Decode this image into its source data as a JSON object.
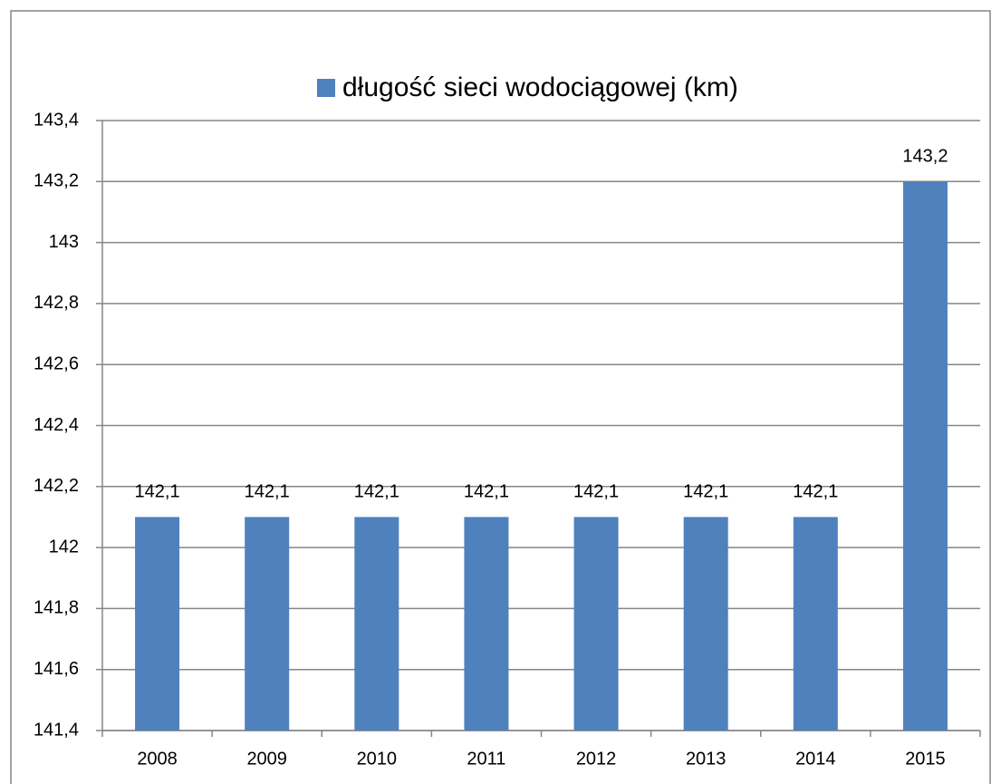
{
  "chart_data": {
    "type": "bar",
    "categories": [
      "2008",
      "2009",
      "2010",
      "2011",
      "2012",
      "2013",
      "2014",
      "2015"
    ],
    "series": [
      {
        "name": "długość sieci wodociągowej (km)",
        "color": "#4f81bd",
        "values": [
          142.1,
          142.1,
          142.1,
          142.1,
          142.1,
          142.1,
          142.1,
          143.2
        ],
        "value_labels": [
          "142,1",
          "142,1",
          "142,1",
          "142,1",
          "142,1",
          "142,1",
          "142,1",
          "143,2"
        ]
      }
    ],
    "ylim": [
      141.4,
      143.4
    ],
    "yticks": [
      {
        "value": 141.4,
        "label": "141,4"
      },
      {
        "value": 141.6,
        "label": "141,6"
      },
      {
        "value": 141.8,
        "label": "141,8"
      },
      142,
      {
        "value": 142.2,
        "label": "142,2"
      },
      {
        "value": 142.4,
        "label": "142,4"
      },
      {
        "value": 142.6,
        "label": "142,6"
      },
      {
        "value": 142.8,
        "label": "142,8"
      },
      143,
      {
        "value": 143.2,
        "label": "143,2"
      },
      {
        "value": 143.4,
        "label": "143,4"
      }
    ],
    "grid": true,
    "legend": "top"
  }
}
